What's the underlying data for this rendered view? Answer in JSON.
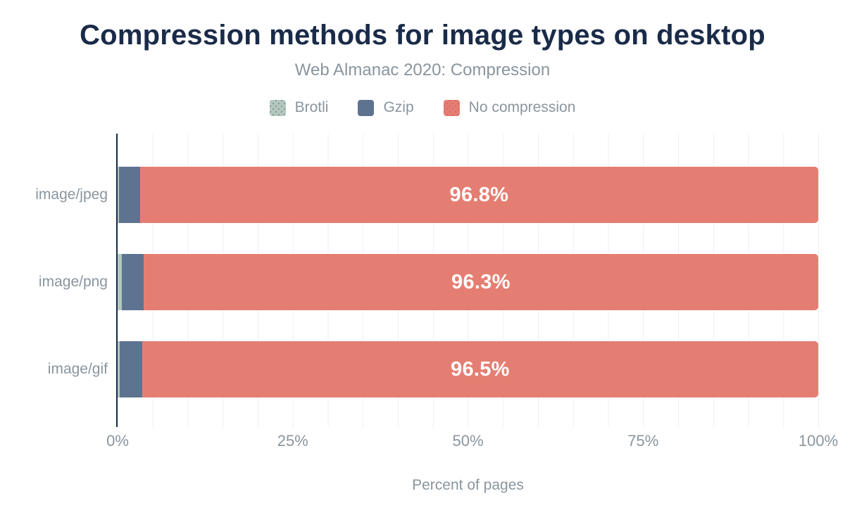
{
  "chart": {
    "title": "Compression methods for image types on desktop",
    "subtitle": "Web Almanac 2020: Compression",
    "xlabel": "Percent of pages"
  },
  "chart_data": {
    "type": "bar",
    "orientation": "horizontal",
    "stacked": true,
    "title": "Compression methods for image types on desktop",
    "subtitle": "Web Almanac 2020: Compression",
    "xlabel": "Percent of pages",
    "ylabel": "",
    "xlim": [
      0,
      100
    ],
    "grid": {
      "interval": 5,
      "color": "#efefef",
      "visible": true
    },
    "legend_position": "top",
    "categories": [
      "image/jpeg",
      "image/png",
      "image/gif"
    ],
    "series": [
      {
        "name": "Brotli",
        "color": "#b5c8bf",
        "pattern": "dots",
        "values": [
          0.2,
          0.6,
          0.3
        ]
      },
      {
        "name": "Gzip",
        "color": "#5e7390",
        "pattern": "solid",
        "values": [
          3.0,
          3.1,
          3.2
        ]
      },
      {
        "name": "No compression",
        "color": "#e57e72",
        "pattern": "subtle-dots",
        "values": [
          96.8,
          96.3,
          96.5
        ]
      }
    ],
    "labeled_series": "No compression",
    "bar_labels": [
      "96.8%",
      "96.3%",
      "96.5%"
    ],
    "x_ticks": [
      {
        "label": "0%",
        "value": 0
      },
      {
        "label": "25%",
        "value": 25
      },
      {
        "label": "50%",
        "value": 50
      },
      {
        "label": "75%",
        "value": 75
      },
      {
        "label": "100%",
        "value": 100
      }
    ]
  },
  "colors": {
    "background": "#ffffff",
    "title_text": "#1a2b49",
    "axis_line": "#1a2b49",
    "muted_text": "#8a959e",
    "value_label_text": "#ffffff",
    "gridline": "#efefef"
  }
}
